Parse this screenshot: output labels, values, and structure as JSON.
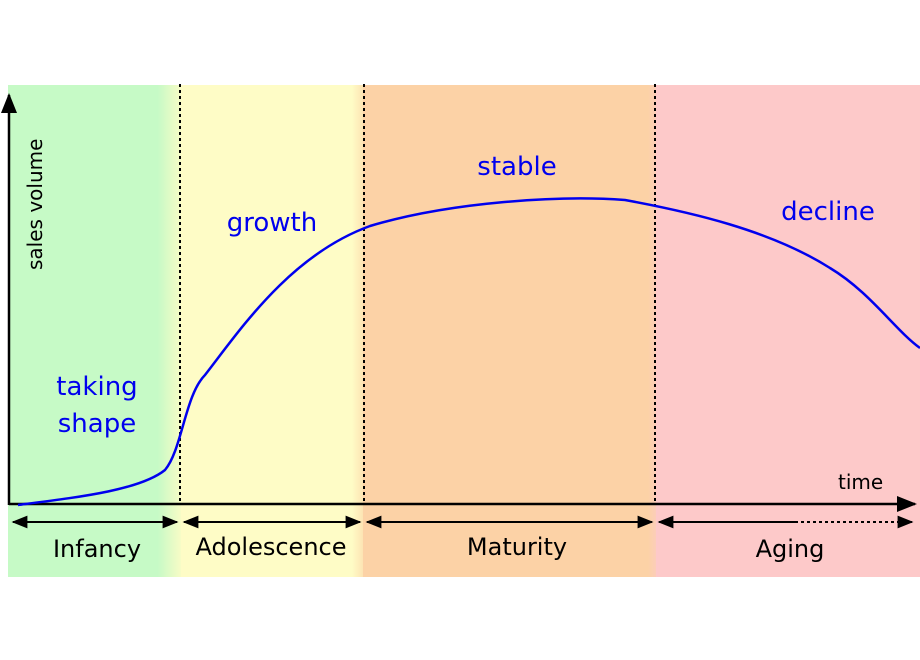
{
  "axes": {
    "y_label": "sales volume",
    "x_label": "time"
  },
  "stages": [
    {
      "name": "Infancy",
      "color": "#c6fac6"
    },
    {
      "name": "Adolescence",
      "color": "#fefcc6"
    },
    {
      "name": "Maturity",
      "color": "#fcd2a6"
    },
    {
      "name": "Aging",
      "color": "#fdc9c9"
    }
  ],
  "curve_labels": {
    "taking_shape_line1": "taking",
    "taking_shape_line2": "shape",
    "growth": "growth",
    "stable": "stable",
    "decline": "decline"
  },
  "colors": {
    "curve": "#0000ee",
    "curve_label": "#0000ee",
    "axis": "#000000"
  }
}
